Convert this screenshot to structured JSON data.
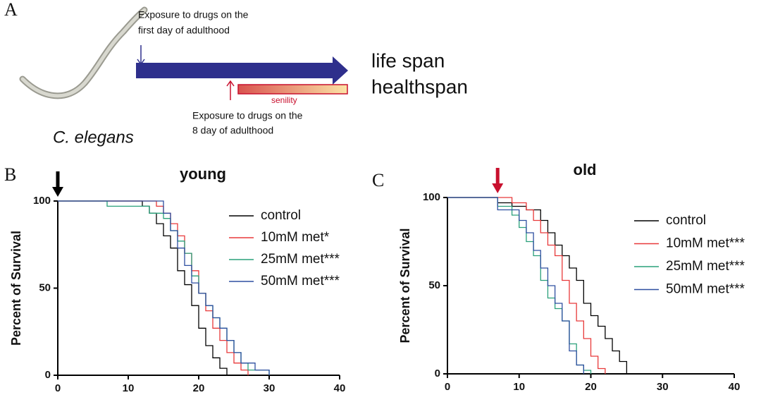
{
  "panel_a": {
    "label": "A",
    "first_day": [
      "Exposure to drugs on the",
      "first day of adulthood"
    ],
    "eighth_day": [
      "Exposure to drugs on the",
      "8 day of adulthood"
    ],
    "outcomes": [
      "life span",
      "healthspan"
    ],
    "senility": "senility",
    "organism": "C. elegans"
  },
  "chart_data": [
    {
      "type": "step",
      "panel_label": "B",
      "title": "young",
      "y_label": "Percent of Survival",
      "xlim": [
        0,
        40
      ],
      "xticks": [
        0,
        10,
        20,
        30,
        40
      ],
      "ylim": [
        0,
        100
      ],
      "yticks": [
        0,
        50,
        100
      ],
      "arrow": {
        "x": 0,
        "color": "#000000"
      },
      "legend": "right",
      "series": [
        {
          "name": "control",
          "color": "#000000",
          "x": [
            0,
            12,
            13,
            14,
            15,
            16,
            17,
            18,
            19,
            20,
            21,
            22,
            23,
            24
          ],
          "values": [
            100,
            97,
            93,
            87,
            80,
            73,
            60,
            52,
            40,
            27,
            17,
            10,
            4,
            0
          ]
        },
        {
          "name": "10mM met*",
          "color": "#e8393a",
          "x": [
            0,
            14,
            15,
            16,
            17,
            18,
            19,
            20,
            21,
            22,
            23,
            24,
            25,
            26,
            27
          ],
          "values": [
            100,
            97,
            93,
            87,
            80,
            70,
            60,
            47,
            37,
            27,
            20,
            13,
            7,
            3,
            0
          ]
        },
        {
          "name": "25mM met***",
          "color": "#2aa07a",
          "x": [
            0,
            7,
            13,
            15,
            16,
            17,
            18,
            19,
            20,
            21,
            22,
            23,
            24,
            25,
            26,
            27,
            30
          ],
          "values": [
            100,
            97,
            93,
            90,
            83,
            77,
            70,
            57,
            47,
            40,
            33,
            27,
            20,
            13,
            7,
            3,
            0
          ]
        },
        {
          "name": "50mM met***",
          "color": "#2e4fa0",
          "x": [
            0,
            15,
            16,
            17,
            18,
            19,
            20,
            21,
            22,
            23,
            24,
            25,
            26,
            28,
            30
          ],
          "values": [
            100,
            93,
            83,
            73,
            63,
            53,
            47,
            40,
            33,
            27,
            20,
            13,
            7,
            3,
            0
          ]
        }
      ]
    },
    {
      "type": "step",
      "panel_label": "C",
      "title": "old",
      "y_label": "Percent of Survival",
      "xlim": [
        0,
        40
      ],
      "xticks": [
        0,
        10,
        20,
        30,
        40
      ],
      "ylim": [
        0,
        100
      ],
      "yticks": [
        0,
        50,
        100
      ],
      "arrow": {
        "x": 7,
        "color": "#c8102e"
      },
      "legend": "right",
      "series": [
        {
          "name": "control",
          "color": "#000000",
          "x": [
            0,
            7,
            9,
            11,
            13,
            14,
            15,
            16,
            17,
            18,
            19,
            20,
            21,
            22,
            23,
            24,
            25
          ],
          "values": [
            100,
            97,
            95,
            93,
            87,
            80,
            73,
            67,
            60,
            53,
            40,
            33,
            27,
            20,
            13,
            7,
            0
          ]
        },
        {
          "name": "10mM met***",
          "color": "#e8393a",
          "x": [
            0,
            9,
            11,
            12,
            13,
            14,
            15,
            16,
            17,
            18,
            19,
            20,
            21,
            22
          ],
          "values": [
            100,
            97,
            93,
            87,
            80,
            73,
            67,
            53,
            40,
            30,
            20,
            10,
            3,
            0
          ]
        },
        {
          "name": "25mM met***",
          "color": "#2aa07a",
          "x": [
            0,
            7,
            9,
            10,
            11,
            12,
            13,
            14,
            15,
            16,
            17,
            18,
            19,
            20
          ],
          "values": [
            100,
            95,
            90,
            83,
            75,
            67,
            53,
            43,
            37,
            30,
            17,
            5,
            2,
            0
          ]
        },
        {
          "name": "50mM met***",
          "color": "#2e4fa0",
          "x": [
            0,
            7,
            10,
            11,
            12,
            13,
            14,
            15,
            16,
            17,
            18,
            19
          ],
          "values": [
            100,
            93,
            87,
            80,
            70,
            60,
            50,
            40,
            30,
            13,
            5,
            0
          ]
        }
      ]
    }
  ]
}
